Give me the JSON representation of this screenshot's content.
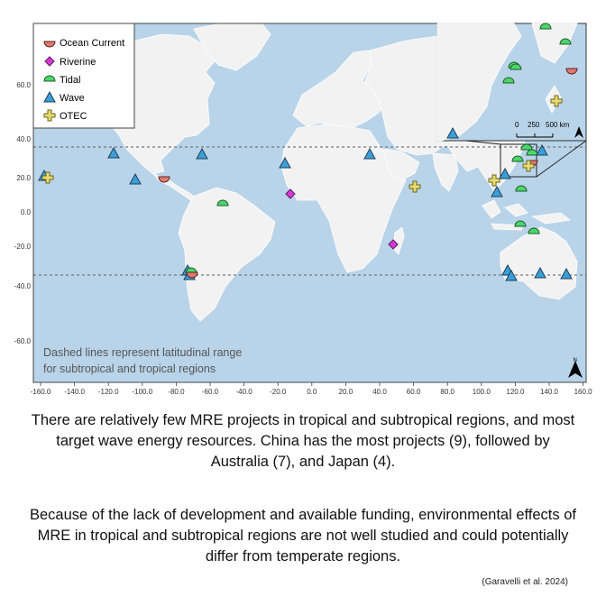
{
  "map": {
    "ocean_color": "#b9d4e9",
    "land_color": "#f2f2f2",
    "x_ticks": [
      "-160.0",
      "-140.0",
      "-120.0",
      "-100.0",
      "-80.0",
      "-60.0",
      "-40.0",
      "-20.0",
      "0.0",
      "20.0",
      "40.0",
      "60.0",
      "80.0",
      "100.0",
      "120.0",
      "140.0",
      "160.0"
    ],
    "y_ticks": [
      "60.0",
      "40.0",
      "20.0",
      "0.0",
      "-20.0",
      "-40.0",
      "-60.0"
    ],
    "legend": [
      {
        "key": "ocean-current",
        "label": "Ocean Current",
        "color": "#e07a6e"
      },
      {
        "key": "riverine",
        "label": "Riverine",
        "color": "#d63ad6"
      },
      {
        "key": "tidal",
        "label": "Tidal",
        "color": "#4cd66a"
      },
      {
        "key": "wave",
        "label": "Wave",
        "color": "#3a9fd8"
      },
      {
        "key": "otec",
        "label": "OTEC",
        "color": "#e6dc6e"
      }
    ],
    "dashed_lines_note_line1": "Dashed lines represent latitudinal range",
    "dashed_lines_note_line2": "for subtropical and tropical regions",
    "inset_scale": {
      "zero": "0",
      "mid": "250",
      "end": "500 km"
    },
    "north_label": "N"
  },
  "caption": {
    "paragraph1": "There are relatively few MRE projects in tropical and subtropical regions, and most target wave energy resources. China has the most projects (9), followed by Australia (7), and Japan (4).",
    "paragraph2": "Because of the lack of development and available funding, environmental effects of MRE in tropical and subtropical regions are not well studied and could potentially differ from temperate regions.",
    "citation": "(Garavelli et al. 2024)"
  }
}
